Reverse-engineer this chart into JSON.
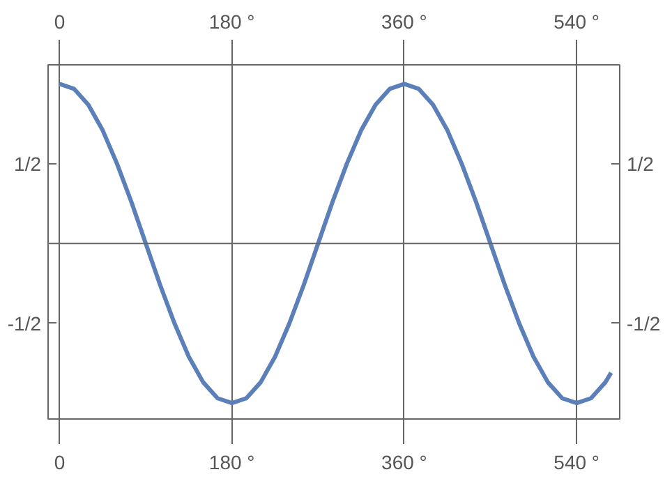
{
  "chart_data": {
    "type": "line",
    "x": [
      0,
      15,
      30,
      45,
      60,
      75,
      90,
      105,
      120,
      135,
      150,
      165,
      180,
      195,
      210,
      225,
      240,
      255,
      270,
      285,
      300,
      315,
      330,
      345,
      360,
      375,
      390,
      405,
      420,
      435,
      450,
      465,
      480,
      495,
      510,
      525,
      540,
      555,
      570,
      576
    ],
    "series": [
      {
        "color": "#5b7fb8",
        "values": [
          1,
          0.97,
          0.87,
          0.71,
          0.5,
          0.26,
          0,
          -0.26,
          -0.5,
          -0.71,
          -0.87,
          -0.97,
          -1,
          -0.97,
          -0.87,
          -0.71,
          -0.5,
          -0.26,
          0,
          0.26,
          0.5,
          0.71,
          0.87,
          0.97,
          1,
          0.97,
          0.87,
          0.71,
          0.5,
          0.26,
          0,
          -0.26,
          -0.5,
          -0.71,
          -0.87,
          -0.97,
          -1,
          -0.97,
          -0.87,
          -0.81
        ]
      }
    ],
    "xlim": [
      -12,
      585
    ],
    "ylim": [
      -1.1,
      1.12
    ],
    "xticks": [
      0,
      {
        "value": 180,
        "label": "180 °"
      },
      {
        "value": 360,
        "label": "360 °"
      },
      {
        "value": 540,
        "label": "540 °"
      }
    ],
    "x2lim": [
      -12,
      585
    ],
    "x2ticks": [
      0,
      {
        "value": 180,
        "label": "180 °"
      },
      {
        "value": 360,
        "label": "360 °"
      },
      {
        "value": 540,
        "label": "540 °"
      }
    ],
    "yticks": [
      {
        "value": 0.5,
        "label": "1/2"
      },
      {
        "value": -0.5,
        "label": "-1/2"
      }
    ],
    "y2lim": [
      -1.1,
      1.12
    ],
    "y2ticks": [
      {
        "value": 0.5,
        "label": "1/2"
      },
      {
        "value": -0.5,
        "label": "-1/2"
      }
    ],
    "ref_lines": [
      {
        "axis": "y",
        "value": 0
      }
    ],
    "grid": "x",
    "marker": "none",
    "line_style": "solid"
  }
}
